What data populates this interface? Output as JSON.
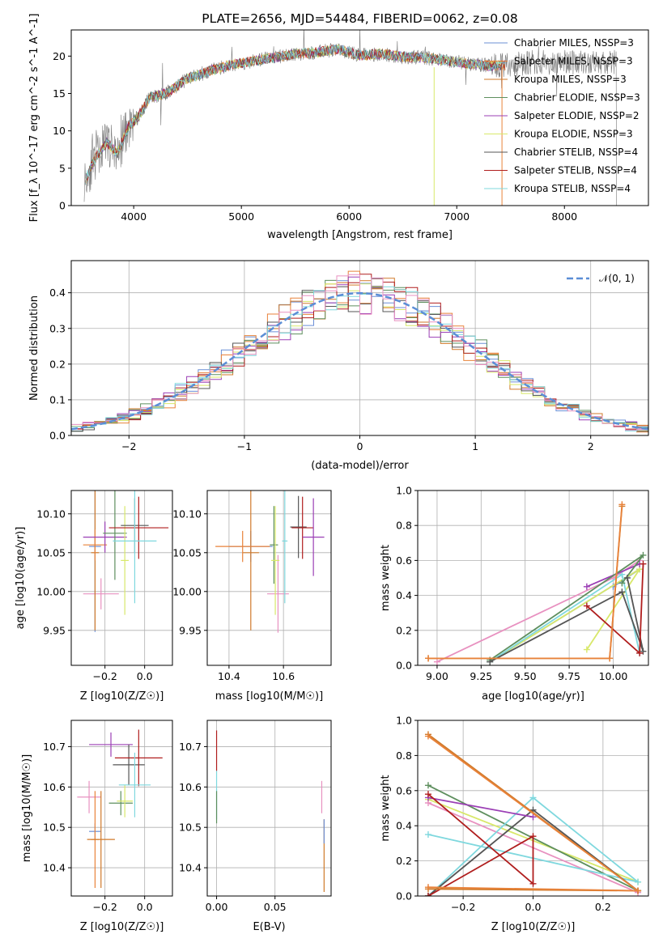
{
  "chart_data": [
    {
      "type": "line",
      "title": "PLATE=2656, MJD=54484, FIBERID=0062, z=0.08",
      "xlabel": "wavelength [Angstrom, rest frame]",
      "ylabel": "Flux [f_λ 10^-17 erg cm^-2 s^-1 A^-1]",
      "xlim": [
        3420,
        8780
      ],
      "ylim": [
        0,
        23.5
      ],
      "xticks": [
        4000,
        5000,
        6000,
        7000,
        8000
      ],
      "yticks": [
        0,
        5,
        10,
        15,
        20
      ],
      "legend_position": "top-right",
      "continuum": {
        "x": [
          3550,
          3650,
          3750,
          3850,
          3950,
          4050,
          4150,
          4300,
          4500,
          4700,
          4900,
          5100,
          5300,
          5500,
          5700,
          5900,
          6100,
          6300,
          6500,
          6700,
          6900,
          7100,
          7300,
          7500,
          7700
        ],
        "y": [
          3.5,
          6.5,
          8.5,
          7.0,
          10.5,
          12.0,
          14.5,
          15.0,
          17.0,
          18.0,
          18.8,
          19.3,
          19.8,
          20.3,
          20.5,
          20.9,
          20.1,
          20.3,
          19.9,
          19.8,
          19.4,
          19.0,
          18.7,
          18.8,
          19.2
        ]
      },
      "spikes": [
        {
          "x": 6790,
          "y": 0
        },
        {
          "x": 7420,
          "y": 0
        }
      ],
      "series": [
        {
          "name": "Chabrier MILES, N_SSP=3",
          "color": "#6b8fd6"
        },
        {
          "name": "Salpeter MILES, N_SSP=3",
          "color": "#e8823a"
        },
        {
          "name": "Kroupa MILES, N_SSP=3",
          "color": "#d07a2a"
        },
        {
          "name": "Chabrier ELODIE, N_SSP=3",
          "color": "#5e8f5e"
        },
        {
          "name": "Salpeter ELODIE, N_SSP=2",
          "color": "#9b3fb5"
        },
        {
          "name": "Kroupa ELODIE, N_SSP=3",
          "color": "#d8e86a"
        },
        {
          "name": "Chabrier STELIB, N_SSP=4",
          "color": "#555555"
        },
        {
          "name": "Salpeter STELIB, N_SSP=4",
          "color": "#b01e1e"
        },
        {
          "name": "Kroupa STELIB, N_SSP=4",
          "color": "#7fd8de"
        }
      ]
    },
    {
      "type": "histogram",
      "xlabel": "(data-model)/error",
      "ylabel": "Normed distribution",
      "xlim": [
        -2.5,
        2.5
      ],
      "ylim": [
        0,
        0.49
      ],
      "xticks": [
        -2,
        -1,
        0,
        1,
        2
      ],
      "yticks": [
        0.0,
        0.1,
        0.2,
        0.3,
        0.4
      ],
      "bin_width": 0.1,
      "grid": true,
      "legend_position": "top-right",
      "reference_curve": {
        "name": "𝒩(0, 1)",
        "color": "#5b8ed6",
        "style": "dashed"
      },
      "histogram_colors": [
        "#6b8fd6",
        "#e8823a",
        "#d07a2a",
        "#5e8f5e",
        "#9b3fb5",
        "#d8e86a",
        "#555555",
        "#b01e1e",
        "#7fd8de",
        "#e891c0"
      ]
    },
    {
      "type": "scatter",
      "xlabel": "Z [log10(Z/Z☉)]",
      "ylabel": "age [log10(age/yr)]",
      "xlim": [
        -0.37,
        0.14
      ],
      "ylim": [
        9.905,
        10.13
      ],
      "xticks": [
        -0.2,
        0.0
      ],
      "yticks": [
        9.95,
        10.0,
        10.05,
        10.1
      ],
      "grid": true,
      "points": [
        {
          "x": -0.22,
          "y": 9.997,
          "xerr": 0.09,
          "yerr": 0.02,
          "color": "#e891c0"
        },
        {
          "x": -0.25,
          "y": 10.058,
          "xerr": 0.03,
          "yerr": 0.11,
          "color": "#6b8fd6"
        },
        {
          "x": -0.25,
          "y": 10.05,
          "xerr": 0.02,
          "yerr": 0.1,
          "color": "#d07a2a"
        },
        {
          "x": -0.25,
          "y": 10.06,
          "xerr": 0.06,
          "yerr": 0.02,
          "color": "#e8823a"
        },
        {
          "x": -0.2,
          "y": 10.07,
          "xerr": 0.11,
          "yerr": 0.02,
          "color": "#9b3fb5"
        },
        {
          "x": -0.15,
          "y": 10.075,
          "xerr": 0.06,
          "yerr": 0.06,
          "color": "#5e8f5e"
        },
        {
          "x": -0.1,
          "y": 10.04,
          "xerr": 0.02,
          "yerr": 0.07,
          "color": "#d8e86a"
        },
        {
          "x": -0.05,
          "y": 10.085,
          "xerr": 0.07,
          "yerr": 0.035,
          "color": "#555555"
        },
        {
          "x": -0.03,
          "y": 10.082,
          "xerr": 0.15,
          "yerr": 0.04,
          "color": "#b01e1e"
        },
        {
          "x": -0.05,
          "y": 10.065,
          "xerr": 0.11,
          "yerr": 0.08,
          "color": "#7fd8de"
        }
      ]
    },
    {
      "type": "scatter",
      "xlabel": "mass [log10(M/M☉)]",
      "ylabel": "",
      "xlim": [
        10.32,
        10.775
      ],
      "ylim": [
        9.905,
        10.13
      ],
      "xticks": [
        10.4,
        10.6
      ],
      "yticks": [
        9.95,
        10.0,
        10.05,
        10.1
      ],
      "grid": true,
      "points": [
        {
          "x": 10.48,
          "y": 10.058,
          "xerr": 0.08,
          "yerr": 0.02,
          "color": "#6b8fd6"
        },
        {
          "x": 10.48,
          "y": 10.05,
          "xerr": 0.03,
          "yerr": 0.1,
          "color": "#d07a2a"
        },
        {
          "x": 10.45,
          "y": 10.058,
          "xerr": 0.1,
          "yerr": 0.02,
          "color": "#e8823a"
        },
        {
          "x": 10.58,
          "y": 9.997,
          "xerr": 0.04,
          "yerr": 0.05,
          "color": "#e891c0"
        },
        {
          "x": 10.565,
          "y": 10.06,
          "xerr": 0.015,
          "yerr": 0.05,
          "color": "#5e8f5e"
        },
        {
          "x": 10.57,
          "y": 10.04,
          "xerr": 0.015,
          "yerr": 0.07,
          "color": "#d8e86a"
        },
        {
          "x": 10.655,
          "y": 10.083,
          "xerr": 0.03,
          "yerr": 0.04,
          "color": "#555555"
        },
        {
          "x": 10.67,
          "y": 10.082,
          "xerr": 0.04,
          "yerr": 0.04,
          "color": "#b01e1e"
        },
        {
          "x": 10.605,
          "y": 10.065,
          "xerr": 0.01,
          "yerr": 0.08,
          "color": "#7fd8de"
        },
        {
          "x": 10.71,
          "y": 10.07,
          "xerr": 0.04,
          "yerr": 0.05,
          "color": "#9b3fb5"
        }
      ]
    },
    {
      "type": "line",
      "xlabel": "age [log10(age/yr)]",
      "ylabel": "mass weight",
      "xlim": [
        8.89,
        10.2
      ],
      "ylim": [
        0,
        1.0
      ],
      "xticks": [
        9.0,
        9.25,
        9.5,
        9.75,
        10.0
      ],
      "yticks": [
        0.0,
        0.2,
        0.4,
        0.6,
        0.8,
        1.0
      ],
      "grid": true,
      "series": [
        {
          "color": "#6b8fd6",
          "x": [
            9.3,
            10.15,
            10.0
          ],
          "y": [
            0.02,
            0.55,
            0.45
          ]
        },
        {
          "color": "#e891c0",
          "x": [
            9.0,
            10.0,
            10.15
          ],
          "y": [
            0.02,
            0.5,
            0.6
          ]
        },
        {
          "color": "#d8e86a",
          "x": [
            9.85,
            10.15,
            9.3
          ],
          "y": [
            0.09,
            0.55,
            0.02
          ]
        },
        {
          "color": "#7fd8de",
          "x": [
            9.3,
            10.05,
            10.15
          ],
          "y": [
            0.02,
            0.52,
            0.07
          ]
        },
        {
          "color": "#9b3fb5",
          "x": [
            9.85,
            10.15
          ],
          "y": [
            0.45,
            0.58
          ]
        },
        {
          "color": "#5e8f5e",
          "x": [
            9.3,
            10.17,
            10.05
          ],
          "y": [
            0.03,
            0.63,
            0.47
          ]
        },
        {
          "color": "#555555",
          "x": [
            9.3,
            10.05,
            10.17,
            10.08
          ],
          "y": [
            0.02,
            0.42,
            0.08,
            0.5
          ]
        },
        {
          "color": "#b01e1e",
          "x": [
            9.85,
            10.15,
            10.17
          ],
          "y": [
            0.34,
            0.07,
            0.58
          ]
        },
        {
          "color": "#d07a2a",
          "x": [
            8.95,
            9.98,
            10.05
          ],
          "y": [
            0.04,
            0.04,
            0.91
          ]
        },
        {
          "color": "#e8823a",
          "x": [
            8.95,
            9.98,
            10.05
          ],
          "y": [
            0.04,
            0.04,
            0.92
          ]
        }
      ]
    },
    {
      "type": "scatter",
      "xlabel": "Z [log10(Z/Z☉)]",
      "ylabel": "mass [log10(M/M☉)]",
      "xlim": [
        -0.37,
        0.14
      ],
      "ylim": [
        10.33,
        10.765
      ],
      "xticks": [
        -0.2,
        0.0
      ],
      "yticks": [
        10.4,
        10.5,
        10.6,
        10.7
      ],
      "grid": true,
      "points": [
        {
          "x": -0.28,
          "y": 10.575,
          "xerr": 0.06,
          "yerr": 0.04,
          "color": "#e891c0"
        },
        {
          "x": -0.25,
          "y": 10.49,
          "xerr": 0.03,
          "yerr": 0.02,
          "color": "#6b8fd6"
        },
        {
          "x": -0.25,
          "y": 10.47,
          "xerr": 0.02,
          "yerr": 0.12,
          "color": "#e8823a"
        },
        {
          "x": -0.22,
          "y": 10.47,
          "xerr": 0.07,
          "yerr": 0.12,
          "color": "#d07a2a"
        },
        {
          "x": -0.17,
          "y": 10.705,
          "xerr": 0.11,
          "yerr": 0.03,
          "color": "#9b3fb5"
        },
        {
          "x": -0.12,
          "y": 10.56,
          "xerr": 0.06,
          "yerr": 0.03,
          "color": "#5e8f5e"
        },
        {
          "x": -0.1,
          "y": 10.565,
          "xerr": 0.04,
          "yerr": 0.04,
          "color": "#d8e86a"
        },
        {
          "x": -0.08,
          "y": 10.655,
          "xerr": 0.08,
          "yerr": 0.05,
          "color": "#555555"
        },
        {
          "x": -0.03,
          "y": 10.672,
          "xerr": 0.12,
          "yerr": 0.07,
          "color": "#b01e1e"
        },
        {
          "x": -0.05,
          "y": 10.605,
          "xerr": 0.08,
          "yerr": 0.08,
          "color": "#7fd8de"
        }
      ]
    },
    {
      "type": "scatter",
      "xlabel": "E(B-V)",
      "ylabel": "",
      "xlim": [
        -0.008,
        0.098
      ],
      "ylim": [
        10.33,
        10.765
      ],
      "xticks": [
        0.0,
        0.05
      ],
      "yticks": [
        10.4,
        10.5,
        10.6,
        10.7
      ],
      "grid": true,
      "points": [
        {
          "x": 0.0,
          "y": 10.69,
          "yerr": 0.05,
          "color": "#b01e1e"
        },
        {
          "x": 0.0,
          "y": 10.58,
          "yerr": 0.06,
          "color": "#7fd8de"
        },
        {
          "x": 0.0,
          "y": 10.55,
          "yerr": 0.04,
          "color": "#5e8f5e"
        },
        {
          "x": 0.09,
          "y": 10.575,
          "yerr": 0.04,
          "color": "#e891c0"
        },
        {
          "x": 0.092,
          "y": 10.43,
          "yerr": 0.09,
          "color": "#d07a2a"
        },
        {
          "x": 0.092,
          "y": 10.49,
          "yerr": 0.03,
          "color": "#6b8fd6"
        }
      ]
    },
    {
      "type": "line",
      "xlabel": "Z [log10(Z/Z☉)]",
      "ylabel": "mass weight",
      "xlim": [
        -0.33,
        0.33
      ],
      "ylim": [
        0,
        1.0
      ],
      "xticks": [
        -0.2,
        0.0,
        0.2
      ],
      "yticks": [
        0.0,
        0.2,
        0.4,
        0.6,
        0.8,
        1.0
      ],
      "grid": true,
      "series": [
        {
          "color": "#d8e86a",
          "x": [
            -0.3,
            0.3
          ],
          "y": [
            0.55,
            0.08
          ]
        },
        {
          "color": "#e891c0",
          "x": [
            -0.3,
            0.3
          ],
          "y": [
            0.53,
            0.02
          ]
        },
        {
          "color": "#5e8f5e",
          "x": [
            -0.3,
            0.3
          ],
          "y": [
            0.63,
            0.03
          ]
        },
        {
          "color": "#7fd8de",
          "x": [
            -0.3,
            0.0,
            0.3,
            -0.3
          ],
          "y": [
            0.0,
            0.56,
            0.08,
            0.35
          ]
        },
        {
          "color": "#555555",
          "x": [
            -0.3,
            0.0,
            0.3
          ],
          "y": [
            0.0,
            0.49,
            0.03
          ]
        },
        {
          "color": "#9b3fb5",
          "x": [
            -0.3,
            0.0
          ],
          "y": [
            0.56,
            0.45
          ]
        },
        {
          "color": "#b01e1e",
          "x": [
            -0.3,
            0.0,
            0.0,
            -0.3
          ],
          "y": [
            0.0,
            0.34,
            0.07,
            0.58
          ]
        },
        {
          "color": "#d07a2a",
          "x": [
            -0.3,
            0.3,
            -0.3
          ],
          "y": [
            0.04,
            0.03,
            0.92
          ]
        },
        {
          "color": "#e8823a",
          "x": [
            -0.3,
            0.3,
            -0.3
          ],
          "y": [
            0.05,
            0.03,
            0.91
          ]
        }
      ]
    }
  ]
}
